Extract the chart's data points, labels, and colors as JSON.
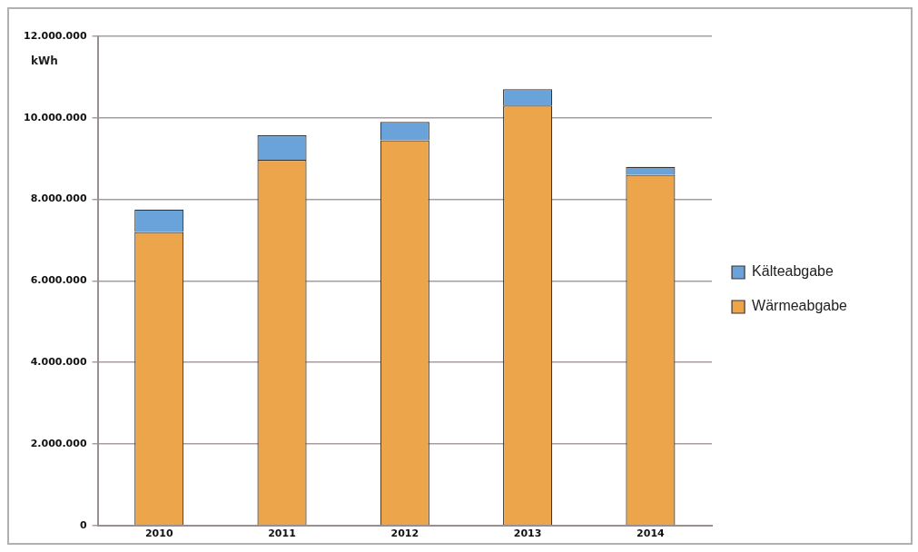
{
  "chart_data": {
    "type": "bar",
    "ylabel": "kWh",
    "categories": [
      "2010",
      "2011",
      "2012",
      "2013",
      "2014"
    ],
    "stacked": true,
    "series": [
      {
        "name": "Wärmeabgabe",
        "color": "#eca54a",
        "values": [
          7200000,
          8970000,
          9450000,
          10300000,
          8600000
        ]
      },
      {
        "name": "Kälteabgabe",
        "color": "#6aa3d9",
        "values": [
          550000,
          600000,
          450000,
          400000,
          200000
        ]
      }
    ],
    "ylim": [
      0,
      12000000
    ],
    "yticks": [
      0,
      {
        "value": 2000000,
        "label": "2.000.000"
      },
      {
        "value": 4000000,
        "label": "4.000.000"
      },
      {
        "value": 6000000,
        "label": "6.000.000"
      },
      {
        "value": 8000000,
        "label": "8.000.000"
      },
      {
        "value": 10000000,
        "label": "10.000.000"
      },
      {
        "value": 12000000,
        "label": "12.000.000"
      }
    ],
    "grid": "y",
    "legend": "right"
  }
}
